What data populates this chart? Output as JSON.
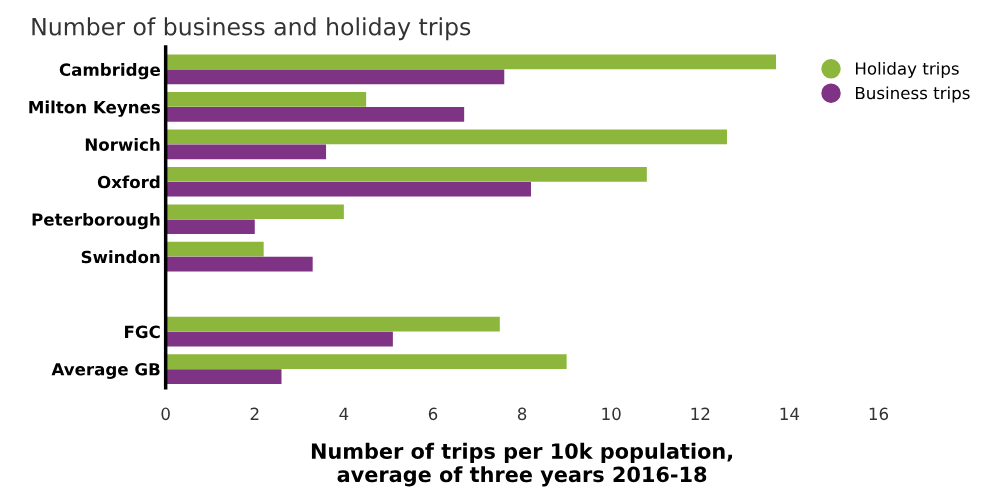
{
  "chart_data": {
    "type": "bar",
    "orientation": "horizontal",
    "title": "Number of business and holiday trips",
    "xlabel": "Number of trips per 10k population,\naverage of three years 2016-18",
    "categories": [
      "Cambridge",
      "Milton Keynes",
      "Norwich",
      "Oxford",
      "Peterborough",
      "Swindon",
      null,
      "FGC",
      "Average GB"
    ],
    "series": [
      {
        "name": "Holiday trips",
        "color": "#8db63c",
        "values": [
          13.7,
          4.5,
          12.6,
          10.8,
          4.0,
          2.2,
          null,
          7.5,
          9.0
        ]
      },
      {
        "name": "Business trips",
        "color": "#7f3384",
        "values": [
          7.6,
          6.7,
          3.6,
          8.2,
          2.0,
          3.3,
          null,
          5.1,
          2.6
        ]
      }
    ],
    "xlim": [
      0,
      16
    ],
    "xticks": [
      0,
      2,
      4,
      6,
      8,
      10,
      12,
      14,
      16
    ],
    "grid": false,
    "legend": "top right"
  }
}
